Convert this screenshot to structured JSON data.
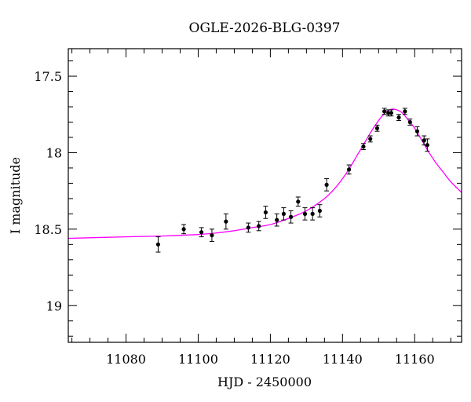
{
  "chart_data": {
    "type": "scatter",
    "title": "OGLE-2026-BLG-0397",
    "xlabel": "HJD - 2450000",
    "ylabel": "I magnitude",
    "xlim": [
      11064,
      11173
    ],
    "ylim": [
      19.24,
      17.32
    ],
    "y_inverted": true,
    "grid": false,
    "x_ticks": [
      11080,
      11100,
      11120,
      11140,
      11160
    ],
    "x_tick_labels": [
      "11080",
      "11100",
      "11120",
      "11140",
      "11160"
    ],
    "y_ticks": [
      17.5,
      18,
      18.5,
      19
    ],
    "y_tick_labels": [
      "17.5",
      "18",
      "18.5",
      "19"
    ],
    "colors": {
      "points": "#000000",
      "model": "#ff00ff"
    },
    "series": [
      {
        "kind": "points_with_errorbars",
        "x": [
          11088.9,
          11096.0,
          11100.9,
          11103.8,
          11107.7,
          11113.9,
          11116.8,
          11118.7,
          11121.8,
          11123.7,
          11125.7,
          11127.7,
          11129.6,
          11131.7,
          11133.7,
          11135.6,
          11141.8,
          11145.8,
          11147.7,
          11149.6,
          11151.6,
          11152.7,
          11153.5,
          11155.6,
          11157.3,
          11158.7,
          11160.7,
          11162.6,
          11163.5
        ],
        "y": [
          18.6,
          18.5,
          18.52,
          18.54,
          18.45,
          18.49,
          18.48,
          18.39,
          18.44,
          18.4,
          18.42,
          18.32,
          18.4,
          18.4,
          18.38,
          18.21,
          18.11,
          17.96,
          17.91,
          17.84,
          17.73,
          17.74,
          17.74,
          17.77,
          17.73,
          17.8,
          17.86,
          17.92,
          17.95
        ],
        "err": [
          0.05,
          0.03,
          0.03,
          0.04,
          0.05,
          0.03,
          0.03,
          0.04,
          0.04,
          0.04,
          0.04,
          0.03,
          0.04,
          0.04,
          0.04,
          0.04,
          0.03,
          0.02,
          0.02,
          0.02,
          0.02,
          0.02,
          0.02,
          0.02,
          0.02,
          0.02,
          0.03,
          0.03,
          0.04
        ]
      },
      {
        "kind": "model_curve",
        "x": [
          11064,
          11080,
          11090,
          11100,
          11105,
          11110,
          11115,
          11120,
          11125,
          11130,
          11135,
          11138,
          11140,
          11142,
          11144,
          11146,
          11148,
          11150,
          11151,
          11152,
          11153,
          11154,
          11155,
          11156,
          11157,
          11158,
          11160,
          11162,
          11164,
          11166,
          11168,
          11170,
          11173
        ],
        "y": [
          18.56,
          18.55,
          18.545,
          18.535,
          18.525,
          18.51,
          18.49,
          18.47,
          18.43,
          18.38,
          18.3,
          18.23,
          18.17,
          18.1,
          18.02,
          17.94,
          17.86,
          17.79,
          17.76,
          17.735,
          17.72,
          17.715,
          17.72,
          17.73,
          17.75,
          17.78,
          17.84,
          17.92,
          18.0,
          18.07,
          18.13,
          18.19,
          18.26
        ]
      }
    ]
  }
}
